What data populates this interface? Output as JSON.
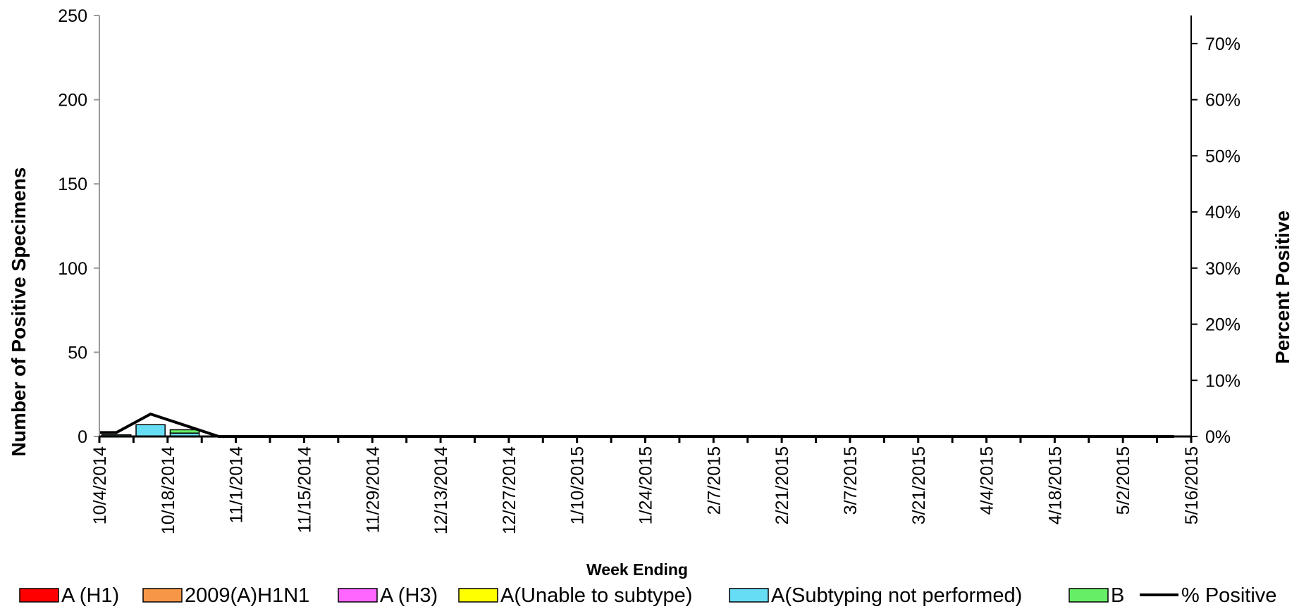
{
  "chart_data": {
    "type": "bar",
    "stacked": true,
    "xlabel": "Week Ending",
    "ylabel": "Number of  Positive Specimens",
    "y2label": "Percent Positive",
    "ylim": [
      0,
      250
    ],
    "y2lim": [
      0,
      0.75
    ],
    "yticks": [
      0,
      50,
      100,
      150,
      200,
      250
    ],
    "y2ticks": [
      "0%",
      "10%",
      "20%",
      "30%",
      "40%",
      "50%",
      "60%",
      "70%"
    ],
    "x_tick_labels": [
      "10/4/2014",
      "10/18/2014",
      "11/1/2014",
      "11/15/2014",
      "11/29/2014",
      "12/13/2014",
      "12/27/2014",
      "1/10/2015",
      "1/24/2015",
      "2/7/2015",
      "2/21/2015",
      "3/7/2015",
      "3/21/2015",
      "4/4/2015",
      "4/18/2015",
      "5/2/2015",
      "5/16/2015"
    ],
    "weeks_total": 32,
    "legend_position": "bottom",
    "series": [
      {
        "name": "A (H1)",
        "color": "#ff0000",
        "kind": "bar",
        "values": [
          0,
          0,
          0,
          0,
          0,
          0,
          0,
          0,
          0,
          0,
          0,
          0,
          0,
          0,
          0,
          0,
          0,
          0,
          0,
          0,
          0,
          0,
          0,
          0,
          0,
          0,
          0,
          0,
          0,
          0,
          0,
          0
        ]
      },
      {
        "name": "2009(A)H1N1",
        "color": "#f79646",
        "kind": "bar",
        "values": [
          0,
          0,
          0,
          0,
          0,
          0,
          0,
          0,
          0,
          0,
          0,
          0,
          0,
          0,
          0,
          0,
          0,
          0,
          0,
          0,
          0,
          0,
          0,
          0,
          0,
          0,
          0,
          0,
          0,
          0,
          0,
          0
        ]
      },
      {
        "name": "A (H3)",
        "color": "#ff66ff",
        "kind": "bar",
        "values": [
          0,
          0,
          0,
          0,
          0,
          0,
          0,
          0,
          0,
          0,
          0,
          0,
          0,
          0,
          0,
          0,
          0,
          0,
          0,
          0,
          0,
          0,
          0,
          0,
          0,
          0,
          0,
          0,
          0,
          0,
          0,
          0
        ]
      },
      {
        "name": "A(Unable to subtype)",
        "color": "#ffff00",
        "kind": "bar",
        "values": [
          0,
          0,
          0,
          0,
          0,
          0,
          0,
          0,
          0,
          0,
          0,
          0,
          0,
          0,
          0,
          0,
          0,
          0,
          0,
          0,
          0,
          0,
          0,
          0,
          0,
          0,
          0,
          0,
          0,
          0,
          0,
          0
        ]
      },
      {
        "name": "A(Subtyping not performed)",
        "color": "#66ddf5",
        "kind": "bar",
        "values": [
          1,
          7,
          2,
          0,
          0,
          0,
          0,
          0,
          0,
          0,
          0,
          0,
          0,
          0,
          0,
          0,
          0,
          0,
          0,
          0,
          0,
          0,
          0,
          0,
          0,
          0,
          0,
          0,
          0,
          0,
          0,
          0
        ]
      },
      {
        "name": "B",
        "color": "#66ee66",
        "kind": "bar",
        "values": [
          0,
          0,
          2,
          0,
          0,
          0,
          0,
          0,
          0,
          0,
          0,
          0,
          0,
          0,
          0,
          0,
          0,
          0,
          0,
          0,
          0,
          0,
          0,
          0,
          0,
          0,
          0,
          0,
          0,
          0,
          0,
          0
        ]
      },
      {
        "name": "% Positive",
        "color": "#000000",
        "kind": "line",
        "axis": "right",
        "values": [
          0.007,
          0.04,
          0.02,
          0,
          0,
          0,
          0,
          0,
          0,
          0,
          0,
          0,
          0,
          0,
          0,
          0,
          0,
          0,
          0,
          0,
          0,
          0,
          0,
          0,
          0,
          0,
          0,
          0,
          0,
          0,
          0,
          0
        ]
      }
    ]
  }
}
